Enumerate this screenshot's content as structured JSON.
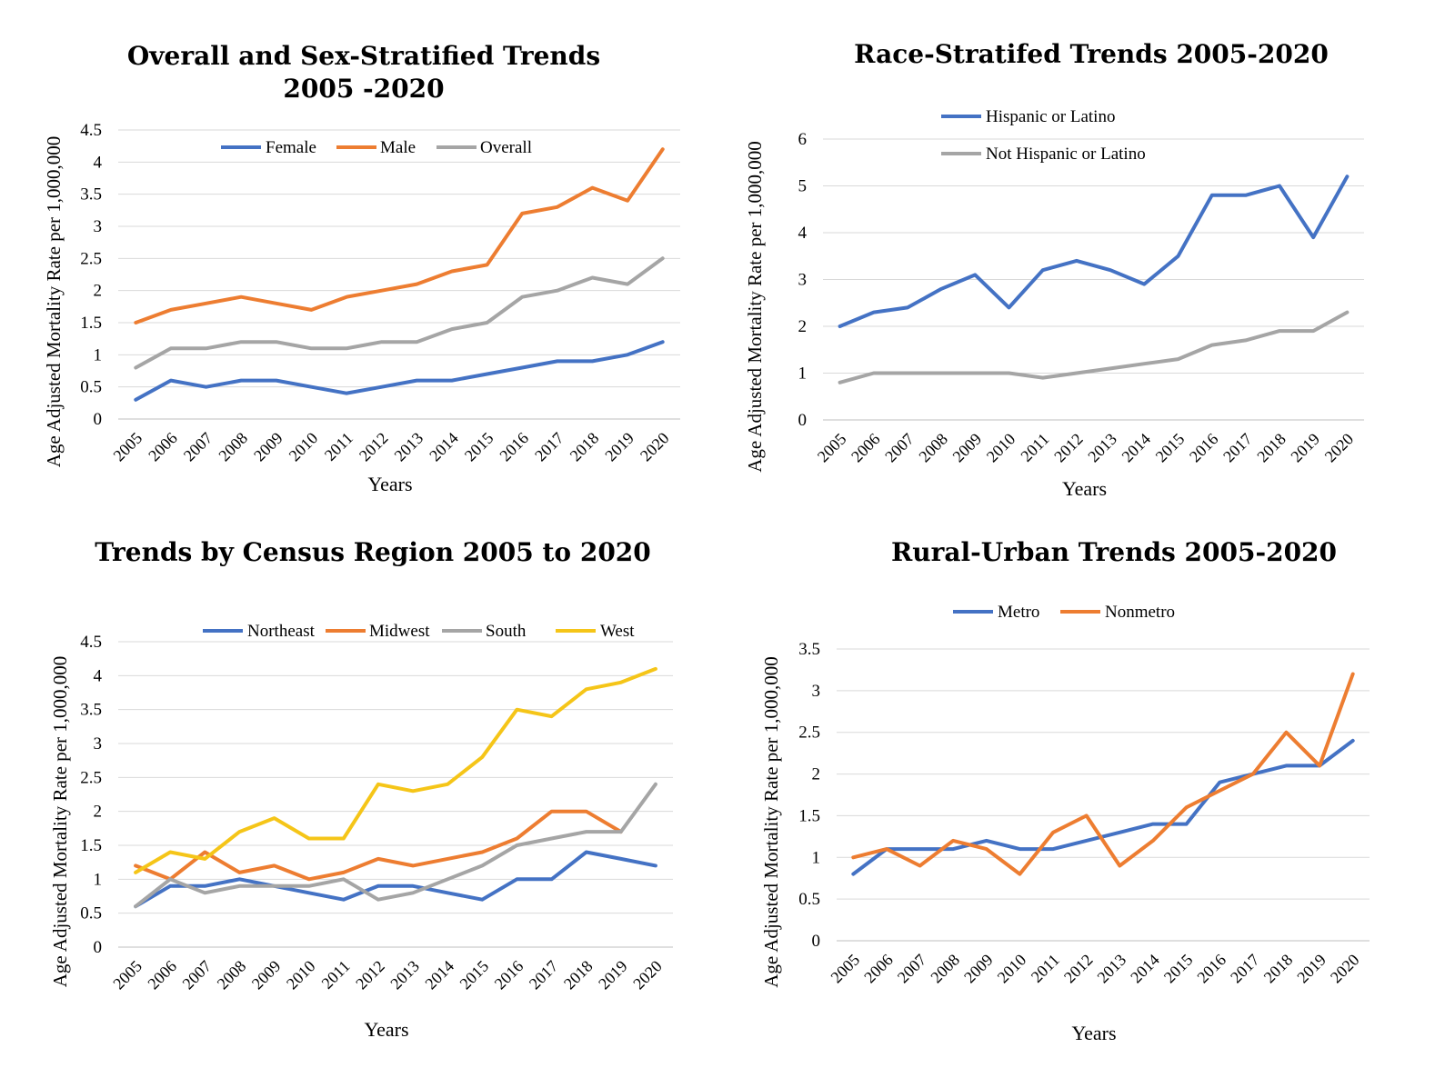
{
  "chart_data": [
    {
      "type": "line",
      "title": "Overall and Sex-Stratified Trends",
      "title_line2": "2005 -2020",
      "xlabel": "Years",
      "ylabel": "Age Adjusted Mortality Rate per 1,000,000",
      "ylim": [
        0,
        4.5
      ],
      "yticks": [
        "0",
        "0.5",
        "1",
        "1.5",
        "2",
        "2.5",
        "3",
        "3.5",
        "4",
        "4.5"
      ],
      "grid": true,
      "legend_position": "top",
      "x": [
        "2005",
        "2006",
        "2007",
        "2008",
        "2009",
        "2010",
        "2011",
        "2012",
        "2013",
        "2014",
        "2015",
        "2016",
        "2017",
        "2018",
        "2019",
        "2020"
      ],
      "series": [
        {
          "name": "Female",
          "color": "#4472C4",
          "values": [
            0.3,
            0.6,
            0.5,
            0.6,
            0.6,
            0.5,
            0.4,
            0.5,
            0.6,
            0.6,
            0.7,
            0.8,
            0.9,
            0.9,
            1.0,
            1.2
          ]
        },
        {
          "name": "Male",
          "color": "#ED7D31",
          "values": [
            1.5,
            1.7,
            1.8,
            1.9,
            1.8,
            1.7,
            1.9,
            2.0,
            2.1,
            2.3,
            2.4,
            3.2,
            3.3,
            3.6,
            3.4,
            4.2
          ]
        },
        {
          "name": "Overall",
          "color": "#A5A5A5",
          "values": [
            0.8,
            1.1,
            1.1,
            1.2,
            1.2,
            1.1,
            1.1,
            1.2,
            1.2,
            1.4,
            1.5,
            1.9,
            2.0,
            2.2,
            2.1,
            2.5
          ]
        }
      ]
    },
    {
      "type": "line",
      "title": "Race-Stratifed Trends 2005-2020",
      "xlabel": "Years",
      "ylabel": "Age Adjusted Mortality Rate per 1,000,000",
      "ylim": [
        0,
        6
      ],
      "yticks": [
        "0",
        "1",
        "2",
        "3",
        "4",
        "5",
        "6"
      ],
      "grid": true,
      "legend_position": "top-left",
      "x": [
        "2005",
        "2006",
        "2007",
        "2008",
        "2009",
        "2010",
        "2011",
        "2012",
        "2013",
        "2014",
        "2015",
        "2016",
        "2017",
        "2018",
        "2019",
        "2020"
      ],
      "series": [
        {
          "name": "Hispanic or Latino",
          "color": "#4472C4",
          "values": [
            2.0,
            2.3,
            2.4,
            2.8,
            3.1,
            2.4,
            3.2,
            3.4,
            3.2,
            2.9,
            3.5,
            4.8,
            4.8,
            5.0,
            3.9,
            5.2
          ]
        },
        {
          "name": "Not Hispanic or Latino",
          "color": "#A5A5A5",
          "values": [
            0.8,
            1.0,
            1.0,
            1.0,
            1.0,
            1.0,
            0.9,
            1.0,
            1.1,
            1.2,
            1.3,
            1.6,
            1.7,
            1.9,
            1.9,
            2.3
          ]
        }
      ]
    },
    {
      "type": "line",
      "title": "Trends by Census Region 2005 to 2020",
      "xlabel": "Years",
      "ylabel": "Age Adjusted Mortality Rate per 1,000,000",
      "ylim": [
        0,
        4.5
      ],
      "yticks": [
        "0",
        "0.5",
        "1",
        "1.5",
        "2",
        "2.5",
        "3",
        "3.5",
        "4",
        "4.5"
      ],
      "grid": true,
      "legend_position": "top",
      "x": [
        "2005",
        "2006",
        "2007",
        "2008",
        "2009",
        "2010",
        "2011",
        "2012",
        "2013",
        "2014",
        "2015",
        "2016",
        "2017",
        "2018",
        "2019",
        "2020"
      ],
      "series": [
        {
          "name": "Northeast",
          "color": "#4472C4",
          "values": [
            0.6,
            0.9,
            0.9,
            1.0,
            0.9,
            0.8,
            0.7,
            0.9,
            0.9,
            0.8,
            0.7,
            1.0,
            1.0,
            1.4,
            1.3,
            1.2
          ]
        },
        {
          "name": "Midwest",
          "color": "#ED7D31",
          "values": [
            1.2,
            1.0,
            1.4,
            1.1,
            1.2,
            1.0,
            1.1,
            1.3,
            1.2,
            1.3,
            1.4,
            1.6,
            2.0,
            2.0,
            1.7,
            null
          ]
        },
        {
          "name": "South",
          "color": "#A5A5A5",
          "values": [
            0.6,
            1.0,
            0.8,
            0.9,
            0.9,
            0.9,
            1.0,
            0.7,
            0.8,
            1.0,
            1.2,
            1.5,
            1.6,
            1.7,
            1.7,
            2.4
          ]
        },
        {
          "name": "West",
          "color": "#F5C518",
          "values": [
            1.1,
            1.4,
            1.3,
            1.7,
            1.9,
            1.6,
            1.6,
            2.4,
            2.3,
            2.4,
            2.8,
            3.5,
            3.4,
            3.8,
            3.9,
            4.1
          ]
        }
      ]
    },
    {
      "type": "line",
      "title": "Rural-Urban Trends 2005-2020",
      "xlabel": "Years",
      "ylabel": "Age Adjusted Mortality Rate per 1,000,000",
      "ylim": [
        0,
        3.5
      ],
      "yticks": [
        "0",
        "0.5",
        "1",
        "1.5",
        "2",
        "2.5",
        "3",
        "3.5"
      ],
      "grid": true,
      "legend_position": "top",
      "x": [
        "2005",
        "2006",
        "2007",
        "2008",
        "2009",
        "2010",
        "2011",
        "2012",
        "2013",
        "2014",
        "2015",
        "2016",
        "2017",
        "2018",
        "2019",
        "2020"
      ],
      "series": [
        {
          "name": "Metro",
          "color": "#4472C4",
          "values": [
            0.8,
            1.1,
            1.1,
            1.1,
            1.2,
            1.1,
            1.1,
            1.2,
            1.3,
            1.4,
            1.4,
            1.9,
            2.0,
            2.1,
            2.1,
            2.4
          ]
        },
        {
          "name": "Nonmetro",
          "color": "#ED7D31",
          "values": [
            1.0,
            1.1,
            0.9,
            1.2,
            1.1,
            0.8,
            1.3,
            1.5,
            0.9,
            1.2,
            1.6,
            1.8,
            2.0,
            2.5,
            2.1,
            3.2
          ]
        }
      ]
    }
  ]
}
